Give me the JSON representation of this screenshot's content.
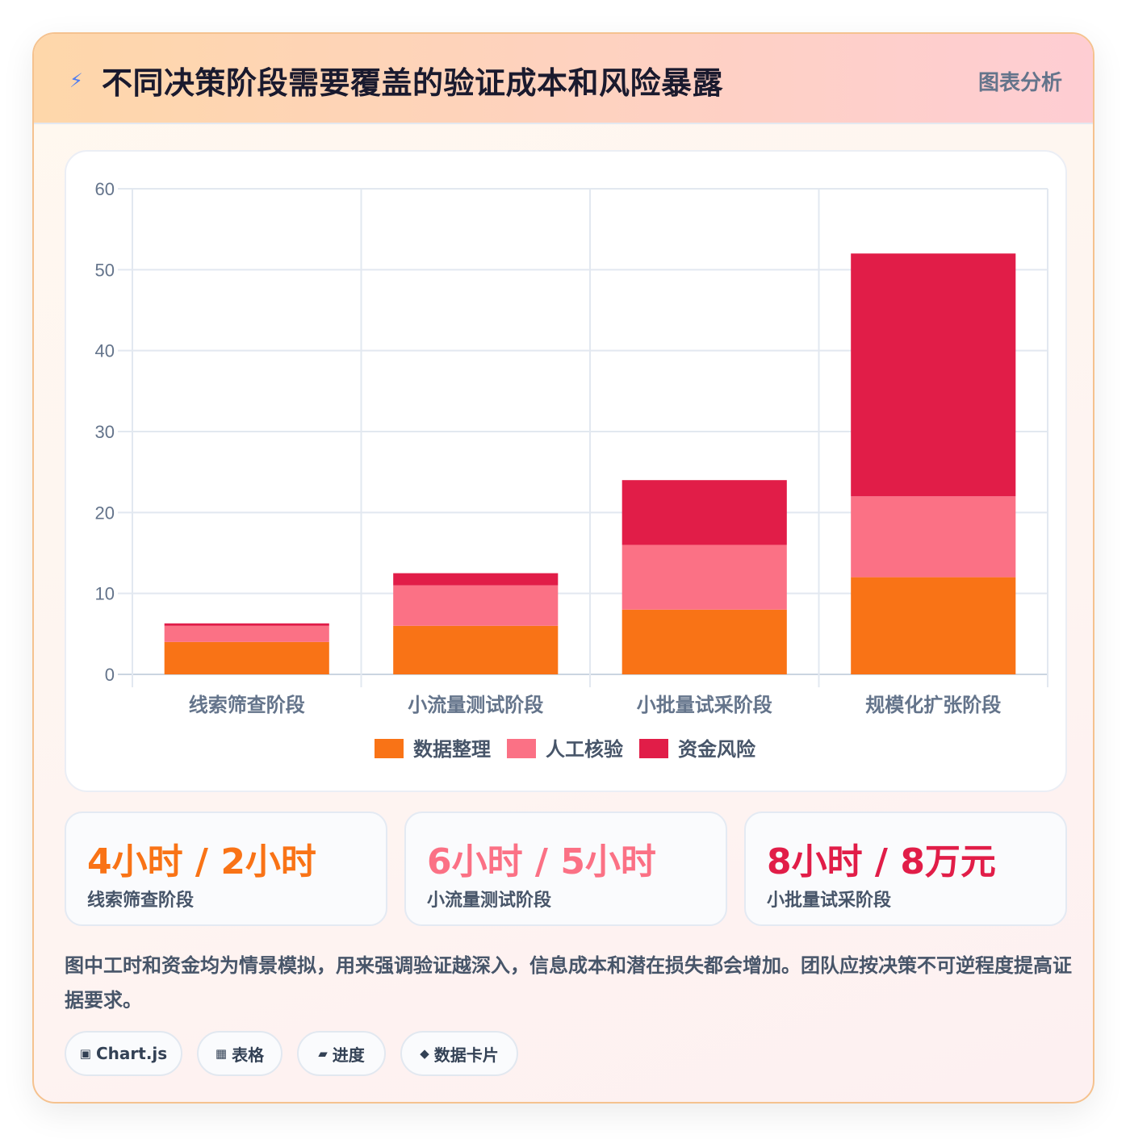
{
  "header": {
    "icon": "lightning-icon",
    "title": "不同决策阶段需要覆盖的验证成本和风险暴露",
    "badge": "图表分析"
  },
  "chart_data": {
    "type": "bar",
    "stacked": true,
    "categories": [
      "线索筛查阶段",
      "小流量测试阶段",
      "小批量试采阶段",
      "规模化扩张阶段"
    ],
    "series": [
      {
        "name": "数据整理",
        "values": [
          4,
          6,
          8,
          12
        ],
        "color": "#f97316"
      },
      {
        "name": "人工核验",
        "values": [
          2,
          5,
          8,
          10
        ],
        "color": "#fb7185"
      },
      {
        "name": "资金风险",
        "values": [
          0.3,
          1.5,
          8,
          30
        ],
        "color": "#e11d48"
      }
    ],
    "ylim": [
      0,
      60
    ],
    "yticks": [
      0,
      10,
      20,
      30,
      40,
      50,
      60
    ],
    "grid": true,
    "legend": "bottom"
  },
  "stats": [
    {
      "value": "4小时 / 2小时",
      "label": "线索筛查阶段",
      "color": "#f97316"
    },
    {
      "value": "6小时 / 5小时",
      "label": "小流量测试阶段",
      "color": "#fb7185"
    },
    {
      "value": "8小时 / 8万元",
      "label": "小批量试采阶段",
      "color": "#e11d48"
    }
  ],
  "note": "图中工时和资金均为情景模拟，用来强调验证越深入，信息成本和潜在损失都会增加。团队应按决策不可逆程度提高证据要求。",
  "tags": [
    {
      "icon": "chart-icon",
      "glyph": "▣",
      "label": "Chart.js"
    },
    {
      "icon": "table-icon",
      "glyph": "▦",
      "label": "表格"
    },
    {
      "icon": "progress-icon",
      "glyph": "▰",
      "label": "进度"
    },
    {
      "icon": "data-card-icon",
      "glyph": "◆",
      "label": "数据卡片"
    }
  ]
}
